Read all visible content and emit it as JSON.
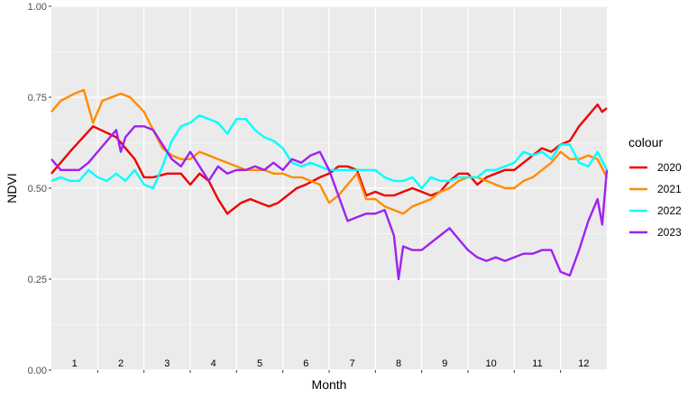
{
  "chart_data": {
    "type": "line",
    "xlabel": "Month",
    "ylabel": "NDVI",
    "xlim": [
      0.5,
      12.5
    ],
    "ylim": [
      0,
      1
    ],
    "x_ticks": [
      1,
      2,
      3,
      4,
      5,
      6,
      7,
      8,
      9,
      10,
      11,
      12
    ],
    "x_tick_labels": [
      "1",
      "2",
      "3",
      "4",
      "5",
      "6",
      "7",
      "8",
      "9",
      "10",
      "11",
      "12"
    ],
    "y_ticks": [
      0,
      0.25,
      0.5,
      0.75,
      1
    ],
    "y_tick_labels": [
      "0.00",
      "0.25",
      "0.50",
      "0.75",
      "1.00"
    ],
    "grid": true,
    "legend": {
      "title": "colour",
      "position": "right"
    },
    "series": [
      {
        "name": "2020",
        "color": "#ee0000",
        "x": [
          0.5,
          0.9,
          1.4,
          1.9,
          2.3,
          2.5,
          2.7,
          3.0,
          3.3,
          3.5,
          3.7,
          3.9,
          4.1,
          4.3,
          4.4,
          4.6,
          4.8,
          5.0,
          5.2,
          5.4,
          5.6,
          5.8,
          6.0,
          6.3,
          6.5,
          6.7,
          6.9,
          7.1,
          7.3,
          7.5,
          7.7,
          7.9,
          8.1,
          8.3,
          8.5,
          8.7,
          8.9,
          9.1,
          9.3,
          9.5,
          9.7,
          9.9,
          10.1,
          10.3,
          10.5,
          10.7,
          10.9,
          11.1,
          11.3,
          11.5,
          11.7,
          11.9,
          12.1,
          12.3,
          12.4,
          12.5
        ],
        "y": [
          0.54,
          0.6,
          0.67,
          0.64,
          0.58,
          0.53,
          0.53,
          0.54,
          0.54,
          0.51,
          0.54,
          0.52,
          0.47,
          0.43,
          0.44,
          0.46,
          0.47,
          0.46,
          0.45,
          0.46,
          0.48,
          0.5,
          0.51,
          0.53,
          0.54,
          0.56,
          0.56,
          0.55,
          0.48,
          0.49,
          0.48,
          0.48,
          0.49,
          0.5,
          0.49,
          0.48,
          0.49,
          0.52,
          0.54,
          0.54,
          0.51,
          0.53,
          0.54,
          0.55,
          0.55,
          0.57,
          0.59,
          0.61,
          0.6,
          0.62,
          0.63,
          0.67,
          0.7,
          0.73,
          0.71,
          0.72
        ]
      },
      {
        "name": "2021",
        "color": "#ff8c00",
        "x": [
          0.5,
          0.7,
          1.0,
          1.2,
          1.4,
          1.6,
          1.8,
          2.0,
          2.2,
          2.5,
          2.7,
          2.9,
          3.1,
          3.3,
          3.5,
          3.7,
          3.9,
          4.1,
          4.3,
          4.5,
          4.7,
          4.9,
          5.1,
          5.3,
          5.5,
          5.7,
          5.9,
          6.1,
          6.3,
          6.5,
          6.7,
          6.9,
          7.1,
          7.3,
          7.5,
          7.7,
          7.9,
          8.1,
          8.3,
          8.5,
          8.7,
          8.9,
          9.1,
          9.3,
          9.5,
          9.7,
          9.9,
          10.1,
          10.3,
          10.5,
          10.7,
          10.9,
          11.1,
          11.3,
          11.5,
          11.7,
          11.9,
          12.1,
          12.3,
          12.5
        ],
        "y": [
          0.71,
          0.74,
          0.76,
          0.77,
          0.68,
          0.74,
          0.75,
          0.76,
          0.75,
          0.71,
          0.66,
          0.61,
          0.59,
          0.58,
          0.58,
          0.6,
          0.59,
          0.58,
          0.57,
          0.56,
          0.55,
          0.55,
          0.55,
          0.54,
          0.54,
          0.53,
          0.53,
          0.52,
          0.51,
          0.46,
          0.48,
          0.51,
          0.54,
          0.47,
          0.47,
          0.45,
          0.44,
          0.43,
          0.45,
          0.46,
          0.47,
          0.49,
          0.5,
          0.52,
          0.53,
          0.53,
          0.52,
          0.51,
          0.5,
          0.5,
          0.52,
          0.53,
          0.55,
          0.57,
          0.6,
          0.58,
          0.58,
          0.59,
          0.58,
          0.53
        ]
      },
      {
        "name": "2022",
        "color": "#00ffff",
        "x": [
          0.5,
          0.7,
          0.9,
          1.1,
          1.3,
          1.5,
          1.7,
          1.9,
          2.1,
          2.3,
          2.5,
          2.7,
          2.9,
          3.1,
          3.3,
          3.5,
          3.7,
          3.9,
          4.1,
          4.3,
          4.5,
          4.7,
          4.9,
          5.1,
          5.3,
          5.5,
          5.7,
          5.9,
          6.1,
          6.3,
          6.5,
          6.7,
          6.9,
          7.1,
          7.3,
          7.5,
          7.7,
          7.9,
          8.1,
          8.3,
          8.5,
          8.7,
          8.9,
          9.1,
          9.3,
          9.5,
          9.7,
          9.9,
          10.1,
          10.3,
          10.5,
          10.7,
          10.9,
          11.1,
          11.3,
          11.5,
          11.7,
          11.9,
          12.1,
          12.3,
          12.5
        ],
        "y": [
          0.52,
          0.53,
          0.52,
          0.52,
          0.55,
          0.53,
          0.52,
          0.54,
          0.52,
          0.55,
          0.51,
          0.5,
          0.56,
          0.63,
          0.67,
          0.68,
          0.7,
          0.69,
          0.68,
          0.65,
          0.69,
          0.69,
          0.66,
          0.64,
          0.63,
          0.61,
          0.57,
          0.56,
          0.57,
          0.56,
          0.55,
          0.55,
          0.55,
          0.55,
          0.55,
          0.55,
          0.53,
          0.52,
          0.52,
          0.53,
          0.5,
          0.53,
          0.52,
          0.52,
          0.53,
          0.53,
          0.53,
          0.55,
          0.55,
          0.56,
          0.57,
          0.6,
          0.59,
          0.6,
          0.58,
          0.62,
          0.62,
          0.57,
          0.56,
          0.6,
          0.55
        ]
      },
      {
        "name": "2023",
        "color": "#a020f0",
        "x": [
          0.5,
          0.7,
          0.9,
          1.1,
          1.3,
          1.5,
          1.7,
          1.9,
          2.0,
          2.1,
          2.3,
          2.5,
          2.7,
          2.9,
          3.1,
          3.3,
          3.5,
          3.7,
          3.9,
          4.1,
          4.3,
          4.5,
          4.7,
          4.9,
          5.1,
          5.3,
          5.5,
          5.7,
          5.9,
          6.1,
          6.3,
          6.5,
          6.7,
          6.9,
          7.1,
          7.3,
          7.5,
          7.7,
          7.9,
          8.0,
          8.1,
          8.3,
          8.5,
          8.7,
          8.9,
          9.1,
          9.3,
          9.5,
          9.7,
          9.9,
          10.1,
          10.3,
          10.5,
          10.7,
          10.9,
          11.1,
          11.3,
          11.5,
          11.7,
          11.9,
          12.1,
          12.3,
          12.4,
          12.5
        ],
        "y": [
          0.58,
          0.55,
          0.55,
          0.55,
          0.57,
          0.6,
          0.63,
          0.66,
          0.6,
          0.64,
          0.67,
          0.67,
          0.66,
          0.62,
          0.58,
          0.56,
          0.6,
          0.56,
          0.52,
          0.56,
          0.54,
          0.55,
          0.55,
          0.56,
          0.55,
          0.57,
          0.55,
          0.58,
          0.57,
          0.59,
          0.6,
          0.55,
          0.48,
          0.41,
          0.42,
          0.43,
          0.43,
          0.44,
          0.37,
          0.25,
          0.34,
          0.33,
          0.33,
          0.35,
          0.37,
          0.39,
          0.36,
          0.33,
          0.31,
          0.3,
          0.31,
          0.3,
          0.31,
          0.32,
          0.32,
          0.33,
          0.33,
          0.27,
          0.26,
          0.33,
          0.41,
          0.47,
          0.4,
          0.55
        ]
      }
    ]
  }
}
